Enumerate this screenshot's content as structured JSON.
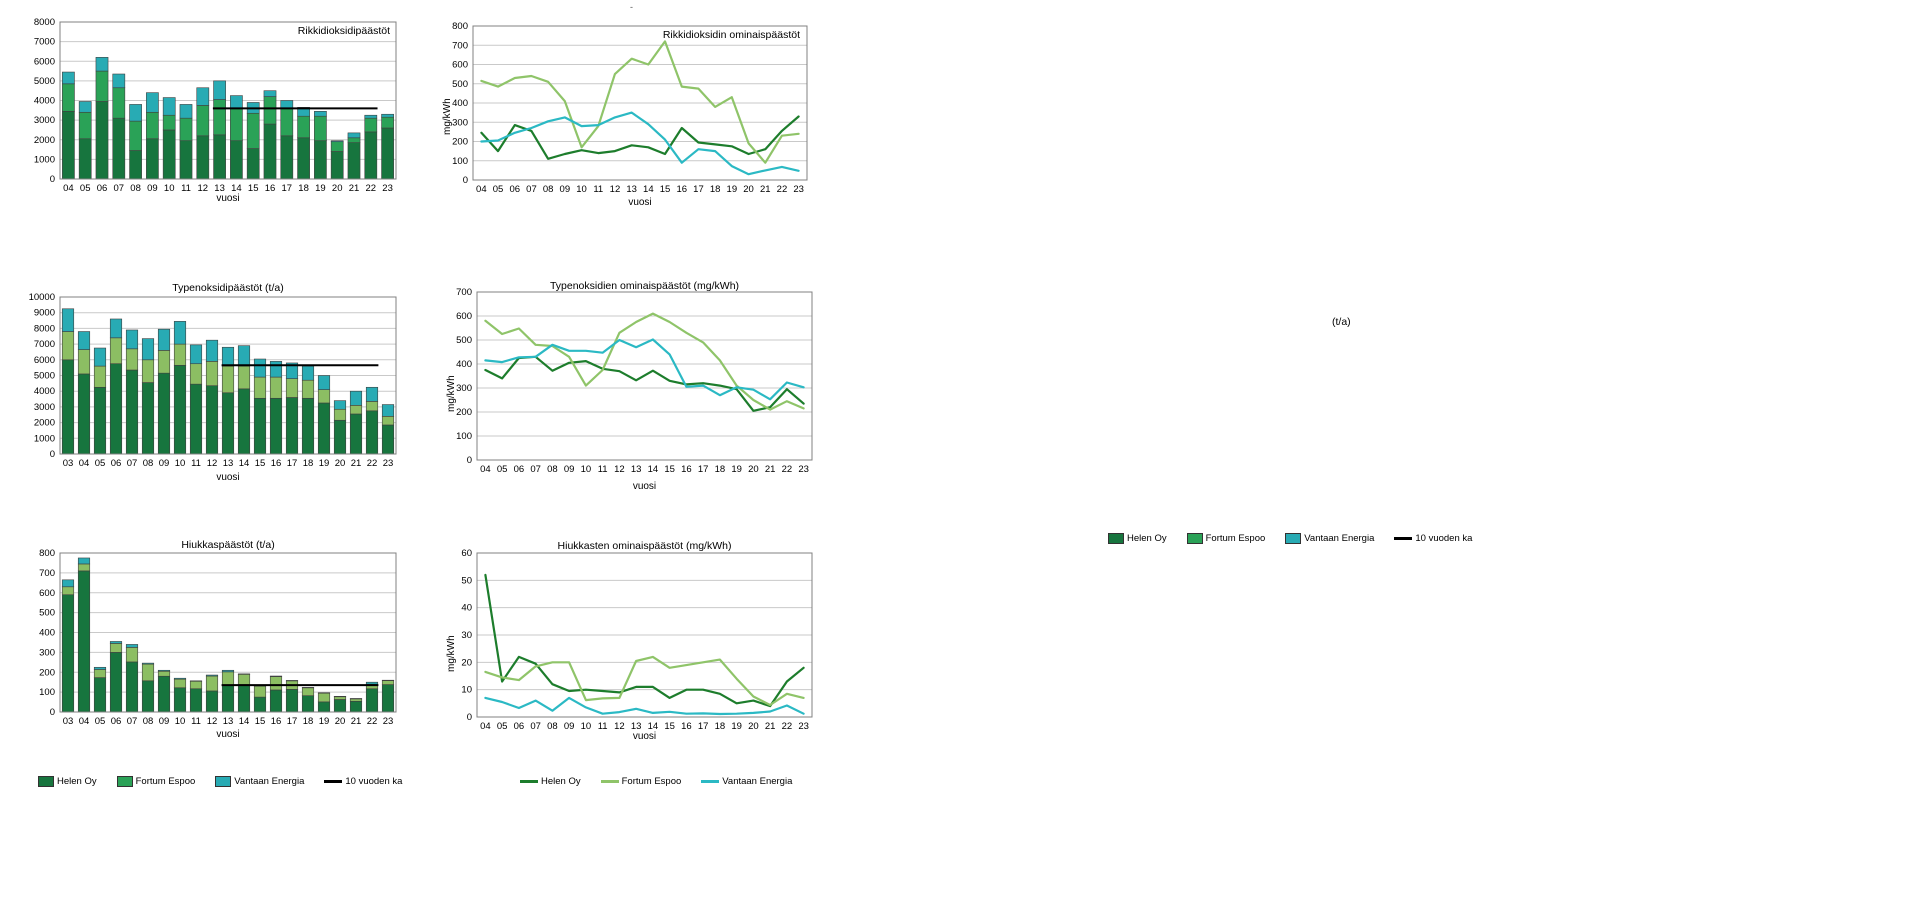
{
  "texts": {
    "floating_unit": "(t/a)",
    "stray_mark": "-"
  },
  "colors": {
    "helen_bar": "#17753e",
    "fortum_bar_kelly": "#2aa257",
    "fortum_bar_light": "#8cbe63",
    "vantaan_bar": "#28abb4",
    "helen_line": "#1d7d2c",
    "fortum_line": "#8fc469",
    "vantaan_line": "#2bb9c4",
    "avg_line": "#000000",
    "grid": "#c9c9c9",
    "plot_border": "#808080"
  },
  "legends": {
    "top_right": [
      {
        "label": "Helen Oy",
        "swatch": "rect",
        "color": "#17753e"
      },
      {
        "label": "Fortum Espoo",
        "swatch": "rect",
        "color": "#2aa257"
      },
      {
        "label": "Vantaan Energia",
        "swatch": "rect",
        "color": "#28abb4"
      },
      {
        "label": "10 vuoden ka",
        "swatch": "line",
        "color": "#000000"
      }
    ],
    "bottom_left": [
      {
        "label": "Helen Oy",
        "swatch": "rect",
        "color": "#17753e"
      },
      {
        "label": "Fortum Espoo",
        "swatch": "rect",
        "color": "#2aa257"
      },
      {
        "label": "Vantaan Energia",
        "swatch": "rect",
        "color": "#28abb4"
      },
      {
        "label": "10 vuoden ka",
        "swatch": "line",
        "color": "#000000"
      }
    ],
    "chart6": [
      {
        "label": "Helen Oy",
        "swatch": "line",
        "color": "#1d7d2c"
      },
      {
        "label": "Fortum Espoo",
        "swatch": "line",
        "color": "#8fc469"
      },
      {
        "label": "Vantaan Energia",
        "swatch": "line",
        "color": "#2bb9c4"
      }
    ]
  },
  "chart_data": [
    {
      "type": "bar",
      "title": "Rikkidioksidipäästöt",
      "xlabel": "vuosi",
      "ylabel": "",
      "ylim": [
        0,
        8000
      ],
      "ystep": 1000,
      "grid": true,
      "categories": [
        "04",
        "05",
        "06",
        "07",
        "08",
        "09",
        "10",
        "11",
        "12",
        "13",
        "14",
        "15",
        "16",
        "17",
        "18",
        "19",
        "20",
        "21",
        "22",
        "23"
      ],
      "series": [
        {
          "name": "Helen Oy",
          "color": "#17753e",
          "values": [
            3450,
            2050,
            3950,
            3100,
            1450,
            2050,
            2500,
            1950,
            2200,
            2250,
            1950,
            1550,
            2800,
            2200,
            2100,
            1950,
            1400,
            1850,
            2400,
            2600
          ]
        },
        {
          "name": "Fortum Espoo",
          "color": "#2aa257",
          "values": [
            1400,
            1350,
            1550,
            1550,
            1500,
            1350,
            750,
            1150,
            1550,
            1800,
            1650,
            1800,
            1400,
            1400,
            1100,
            1250,
            500,
            250,
            700,
            550
          ]
        },
        {
          "name": "Vantaan Energia",
          "color": "#28abb4",
          "values": [
            600,
            550,
            700,
            700,
            850,
            1000,
            900,
            700,
            900,
            950,
            650,
            550,
            300,
            400,
            450,
            250,
            50,
            250,
            150,
            150
          ]
        }
      ],
      "avg_line": {
        "label": "10 vuoden ka",
        "color": "#000000",
        "value": 3600,
        "from": "13",
        "to": "22"
      }
    },
    {
      "type": "line",
      "title": "Rikkidioksidin ominaispäästöt",
      "xlabel": "vuosi",
      "ylabel": "mg/kWh",
      "ylim": [
        0,
        800
      ],
      "ystep": 100,
      "grid": true,
      "categories": [
        "04",
        "05",
        "06",
        "07",
        "08",
        "09",
        "10",
        "11",
        "12",
        "13",
        "14",
        "15",
        "16",
        "17",
        "18",
        "19",
        "20",
        "21",
        "22",
        "23"
      ],
      "series": [
        {
          "name": "Helen Oy",
          "color": "#1d7d2c",
          "values": [
            245,
            150,
            285,
            255,
            110,
            135,
            155,
            140,
            150,
            180,
            170,
            135,
            270,
            195,
            185,
            175,
            135,
            160,
            255,
            330
          ]
        },
        {
          "name": "Fortum Espoo",
          "color": "#8fc469",
          "values": [
            515,
            485,
            530,
            540,
            510,
            410,
            170,
            280,
            550,
            630,
            600,
            720,
            485,
            475,
            380,
            430,
            190,
            90,
            230,
            240
          ]
        },
        {
          "name": "Vantaan Energia",
          "color": "#2bb9c4",
          "values": [
            200,
            205,
            245,
            270,
            305,
            325,
            280,
            285,
            325,
            350,
            290,
            210,
            90,
            160,
            150,
            72,
            30,
            50,
            68,
            48
          ]
        }
      ]
    },
    {
      "type": "bar",
      "title": "Typenoksidipäästöt (t/a)",
      "xlabel": "vuosi",
      "ylabel": "",
      "ylim": [
        0,
        10000
      ],
      "ystep": 1000,
      "grid": true,
      "categories": [
        "03",
        "04",
        "05",
        "06",
        "07",
        "08",
        "09",
        "10",
        "11",
        "12",
        "13",
        "14",
        "15",
        "16",
        "17",
        "18",
        "19",
        "20",
        "21",
        "22",
        "23"
      ],
      "series": [
        {
          "name": "Helen Oy",
          "color": "#17753e",
          "values": [
            6000,
            5100,
            4250,
            5750,
            5350,
            4550,
            5150,
            5650,
            4450,
            4350,
            3900,
            4150,
            3550,
            3550,
            3600,
            3550,
            3250,
            2150,
            2550,
            2750,
            1850
          ]
        },
        {
          "name": "Fortum Espoo",
          "color": "#8cbe63",
          "values": [
            1800,
            1550,
            1350,
            1650,
            1350,
            1450,
            1450,
            1350,
            1300,
            1550,
            1700,
            1450,
            1350,
            1350,
            1200,
            1150,
            850,
            700,
            550,
            600,
            550
          ]
        },
        {
          "name": "Vantaan Energia",
          "color": "#28abb4",
          "values": [
            1450,
            1150,
            1150,
            1200,
            1200,
            1350,
            1350,
            1450,
            1200,
            1350,
            1200,
            1300,
            1150,
            1000,
            1000,
            900,
            900,
            550,
            900,
            900,
            750
          ]
        }
      ],
      "avg_line": {
        "label": "10 vuoden ka",
        "color": "#000000",
        "value": 5650,
        "from": "13",
        "to": "22"
      }
    },
    {
      "type": "line",
      "title": "Typenoksidien ominaispäästöt (mg/kWh)",
      "xlabel": "vuosi",
      "ylabel": "mg/kWh",
      "ylim": [
        0,
        700
      ],
      "ystep": 100,
      "grid": true,
      "categories": [
        "04",
        "05",
        "06",
        "07",
        "08",
        "09",
        "10",
        "11",
        "12",
        "13",
        "14",
        "15",
        "16",
        "17",
        "18",
        "19",
        "20",
        "21",
        "22",
        "23"
      ],
      "series": [
        {
          "name": "Helen Oy",
          "color": "#1d7d2c",
          "values": [
            375,
            340,
            425,
            430,
            372,
            405,
            412,
            380,
            370,
            332,
            372,
            330,
            315,
            320,
            310,
            295,
            205,
            220,
            295,
            235
          ]
        },
        {
          "name": "Fortum Espoo",
          "color": "#8fc469",
          "values": [
            580,
            525,
            548,
            480,
            475,
            430,
            310,
            375,
            530,
            575,
            610,
            575,
            530,
            490,
            415,
            310,
            250,
            210,
            245,
            215
          ]
        },
        {
          "name": "Vantaan Energia",
          "color": "#2bb9c4",
          "values": [
            415,
            408,
            428,
            430,
            480,
            455,
            455,
            447,
            500,
            470,
            502,
            440,
            305,
            310,
            270,
            303,
            293,
            253,
            323,
            303
          ]
        }
      ]
    },
    {
      "type": "bar",
      "title": "Hiukkaspäästöt (t/a)",
      "xlabel": "vuosi",
      "ylabel": "",
      "ylim": [
        0,
        800
      ],
      "ystep": 100,
      "grid": true,
      "categories": [
        "03",
        "04",
        "05",
        "06",
        "07",
        "08",
        "09",
        "10",
        "11",
        "12",
        "13",
        "14",
        "15",
        "16",
        "17",
        "18",
        "19",
        "20",
        "21",
        "22",
        "23"
      ],
      "series": [
        {
          "name": "Helen Oy",
          "color": "#17753e",
          "values": [
            590,
            710,
            173,
            300,
            252,
            157,
            180,
            122,
            117,
            106,
            135,
            138,
            75,
            111,
            114,
            82,
            51,
            63,
            54,
            117,
            138
          ]
        },
        {
          "name": "Fortum Espoo",
          "color": "#8cbe63",
          "values": [
            40,
            35,
            41,
            45,
            73,
            84,
            25,
            43,
            38,
            75,
            67,
            52,
            55,
            67,
            43,
            40,
            44,
            15,
            13,
            23,
            20
          ]
        },
        {
          "name": "Vantaan Energia",
          "color": "#28abb4",
          "values": [
            35,
            30,
            11,
            10,
            15,
            5,
            5,
            5,
            2,
            5,
            8,
            2,
            5,
            3,
            2,
            2,
            2,
            1,
            1,
            10,
            2
          ]
        }
      ],
      "avg_line": {
        "label": "10 vuoden ka",
        "color": "#000000",
        "value": 135,
        "from": "13",
        "to": "22"
      }
    },
    {
      "type": "line",
      "title": "Hiukkasten ominaispäästöt (mg/kWh)",
      "xlabel": "vuosi",
      "ylabel": "mg/kWh",
      "ylim": [
        0,
        60
      ],
      "ystep": 10,
      "grid": true,
      "categories": [
        "04",
        "05",
        "06",
        "07",
        "08",
        "09",
        "10",
        "11",
        "12",
        "13",
        "14",
        "15",
        "16",
        "17",
        "18",
        "19",
        "20",
        "21",
        "22",
        "23"
      ],
      "series": [
        {
          "name": "Helen Oy",
          "color": "#1d7d2c",
          "values": [
            52,
            13,
            22,
            19.5,
            12,
            9.5,
            10,
            9.5,
            9,
            11,
            11,
            7,
            10,
            10,
            8.5,
            5,
            6,
            4,
            13,
            18
          ]
        },
        {
          "name": "Fortum Espoo",
          "color": "#8fc469",
          "values": [
            16.5,
            14.5,
            13.5,
            18.5,
            20,
            20,
            6.2,
            6.8,
            7,
            20.5,
            22,
            18,
            19,
            20,
            21,
            14,
            7.5,
            4.4,
            8.5,
            7
          ]
        },
        {
          "name": "Vantaan Energia",
          "color": "#2bb9c4",
          "values": [
            7,
            5.5,
            3.3,
            6,
            2.3,
            7,
            3.5,
            1.2,
            1.8,
            3,
            1.5,
            1.9,
            1.2,
            1.3,
            1.1,
            1.2,
            1.5,
            2,
            4.2,
            1.2
          ]
        }
      ]
    }
  ]
}
